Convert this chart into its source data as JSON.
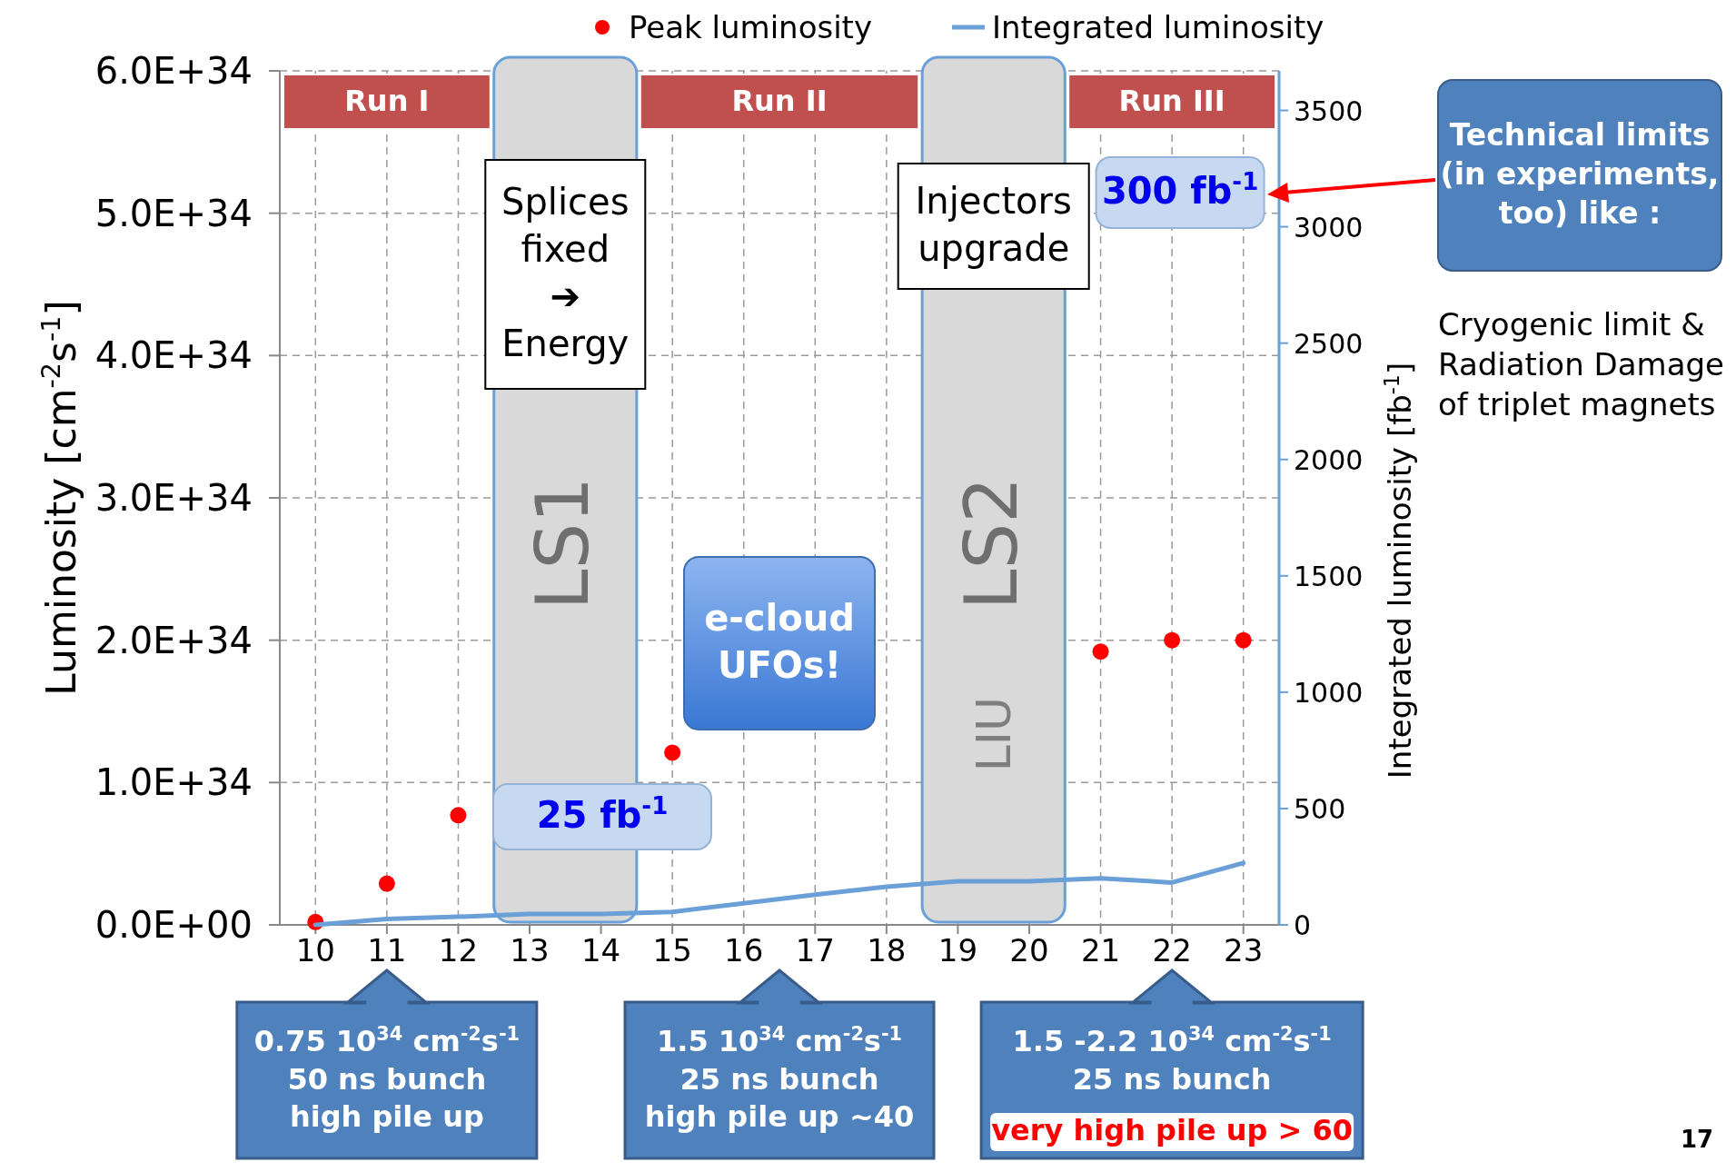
{
  "chart_data": {
    "type": "line",
    "categories": [
      "10",
      "11",
      "12",
      "13",
      "14",
      "15",
      "16",
      "17",
      "18",
      "19",
      "20",
      "21",
      "22",
      "23"
    ],
    "series": [
      {
        "name": "Peak luminosity",
        "type": "scatter",
        "color": "#ff0000",
        "values": [
          2e+32,
          2.9e+33,
          7.7e+33,
          null,
          null,
          1.21e+34,
          null,
          null,
          null,
          null,
          null,
          1.92e+34,
          2e+34,
          2e+34
        ]
      },
      {
        "name": "Integrated luminosity",
        "axis": "y2",
        "color": "#6a9fd8",
        "values": [
          0,
          25,
          35,
          47,
          47,
          56,
          93,
          130,
          164,
          187,
          187,
          200,
          182,
          266
        ]
      }
    ],
    "ylabel": "Luminosity [cm$^{-2}$s$^{-1}$]",
    "y2label": "Integrated luminosity [fb$^{-1}$]",
    "ylim": [
      0,
      6e+34
    ],
    "yticks": [
      {
        "value": 0,
        "label": "0.0E+00"
      },
      {
        "value": 1e+34,
        "label": "1.0E+34"
      },
      {
        "value": 2e+34,
        "label": "2.0E+34"
      },
      {
        "value": 3e+34,
        "label": "3.0E+34"
      },
      {
        "value": 4e+34,
        "label": "4.0E+34"
      },
      {
        "value": 5e+34,
        "label": "5.0E+34"
      },
      {
        "value": 6e+34,
        "label": "6.0E+34"
      }
    ],
    "y2lim": [
      0,
      3670
    ],
    "y2ticks": [
      0,
      500,
      1000,
      1500,
      2000,
      2500,
      3000,
      3500
    ],
    "bands": [
      {
        "axis": "x",
        "from": "13",
        "to": "14",
        "label": "LS1",
        "color": "#d9d9d9"
      },
      {
        "axis": "x",
        "from": "19",
        "to": "20",
        "label": "LS2",
        "color": "#d9d9d9"
      }
    ],
    "annotations": [
      "Run I",
      "Run II",
      "Run III",
      "Splices\nfixed\n➔\nEnergy",
      "Injectors\nupgrade",
      "e-cloud\nUFOs!",
      "25 fb$^{-1}$",
      "300 fb$^{-1}$",
      "Technical limits\n(in experiments,\ntoo) like :",
      "Cryogenic limit &\nRadiation Damage\nof triplet magnets",
      "0.75 10$^{34}$ cm$^{-2}$s$^{-1}$\n50 ns bunch\nhigh pile up",
      "1.5 10$^{34}$ cm$^{-2}$s$^{-1}$\n25 ns bunch\nhigh pile up ~40",
      "1.5 -2.2  10$^{34}$ cm$^{-2}$s$^{-1}$\n25 ns bunch",
      "very high pile up > 60",
      "LIU",
      "17"
    ],
    "grid": true,
    "legend": "top"
  }
}
